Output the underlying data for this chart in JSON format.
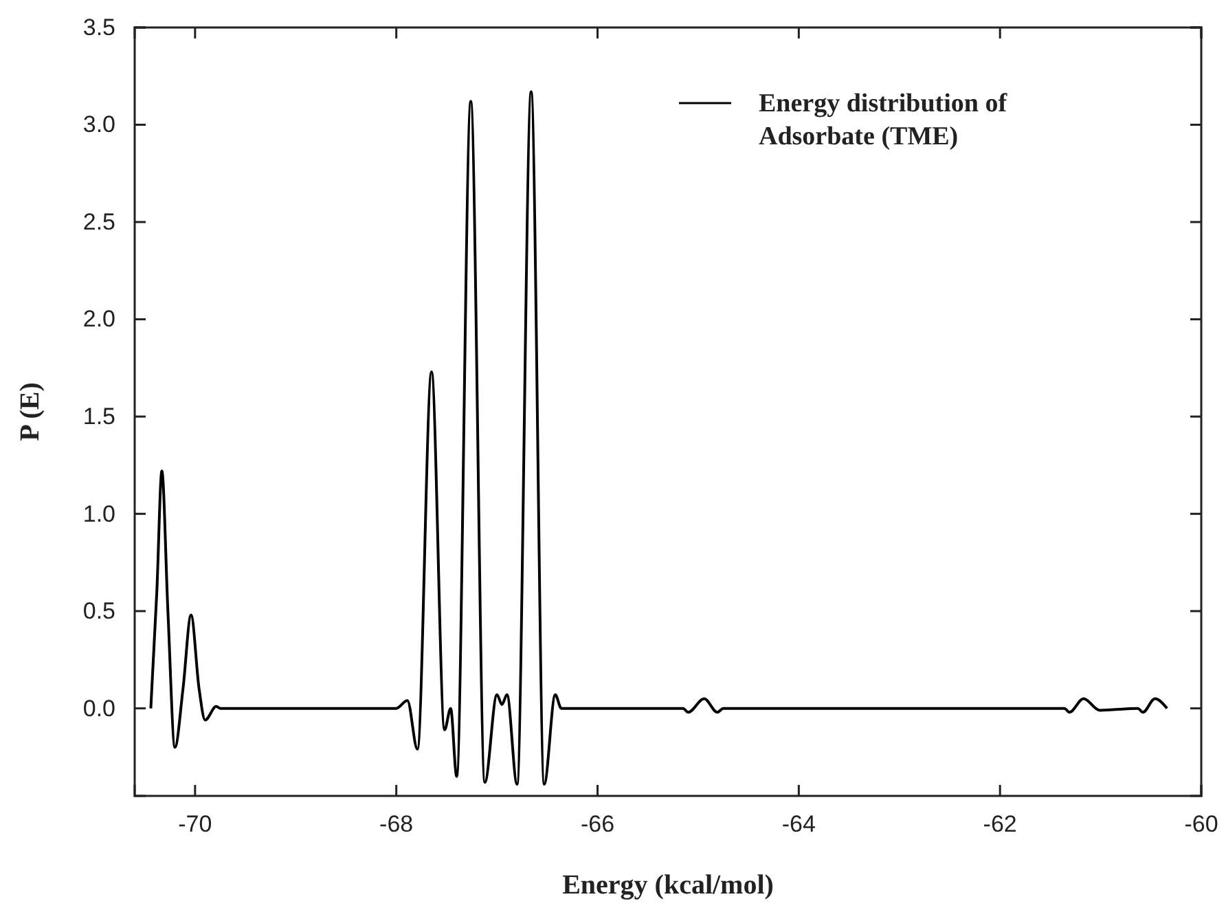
{
  "chart_data": {
    "type": "line",
    "xlabel": "Energy (kcal/mol)",
    "ylabel": "P (E)",
    "xlim": [
      -70.6,
      -60
    ],
    "xticks": [
      -70,
      -68,
      -66,
      -64,
      -62,
      -60
    ],
    "ylim": [
      -0.45,
      3.5
    ],
    "yticks": [
      {
        "value": 0,
        "label": "0.0"
      },
      {
        "value": 0.5,
        "label": "0.5"
      },
      {
        "value": 1,
        "label": "1.0"
      },
      {
        "value": 1.5,
        "label": "1.5"
      },
      {
        "value": 2,
        "label": "2.0"
      },
      {
        "value": 2.5,
        "label": "2.5"
      },
      {
        "value": 3,
        "label": "3.0"
      },
      {
        "value": 3.5,
        "label": "3.5"
      }
    ],
    "grid": false,
    "legend": "top right",
    "marker": "none",
    "line_style": "solid",
    "series": [
      {
        "name": "Energy distribution of Adsorbate (TME)",
        "color": "#000000",
        "x": [
          -70.44,
          -70.38,
          -70.33,
          -70.27,
          -70.2,
          -70.12,
          -70.04,
          -69.96,
          -69.9,
          -69.79,
          -69.75,
          -68.0,
          -67.89,
          -67.79,
          -67.65,
          -67.52,
          -67.46,
          -67.4,
          -67.26,
          -67.12,
          -67.0,
          -66.95,
          -66.9,
          -66.8,
          -66.66,
          -66.53,
          -66.42,
          -66.36,
          -65.15,
          -65.1,
          -64.94,
          -64.81,
          -64.75,
          -61.36,
          -61.31,
          -61.17,
          -61.01,
          -60.63,
          -60.58,
          -60.46,
          -60.34
        ],
        "values": [
          0,
          0.6,
          1.22,
          0.5,
          -0.2,
          0.1,
          0.48,
          0.1,
          -0.06,
          0.01,
          0,
          0,
          0.04,
          -0.21,
          1.73,
          -0.11,
          0,
          -0.35,
          3.12,
          -0.38,
          0.07,
          0.02,
          0.07,
          -0.39,
          3.17,
          -0.39,
          0.07,
          0,
          0,
          -0.02,
          0.05,
          -0.02,
          0,
          0,
          -0.02,
          0.05,
          -0.01,
          0,
          -0.02,
          0.05,
          0
        ]
      }
    ]
  }
}
